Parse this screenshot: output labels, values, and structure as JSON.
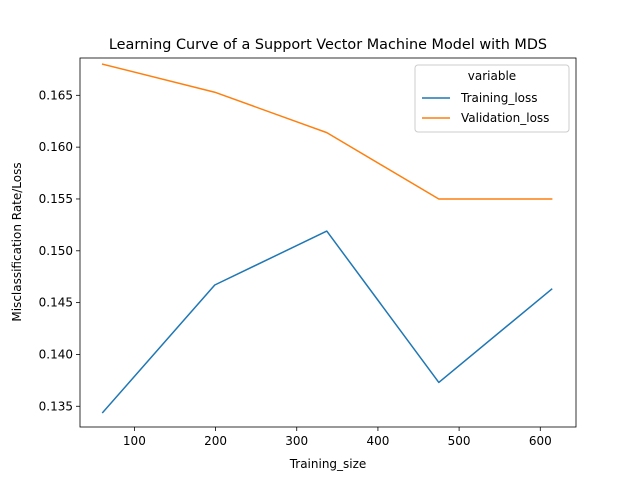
{
  "chart_data": {
    "type": "line",
    "title": "Learning Curve of a Support Vector Machine Model with MDS",
    "xlabel": "Training_size",
    "ylabel": "Misclassification Rate/Loss",
    "xlim": [
      33,
      644
    ],
    "ylim": [
      0.133,
      0.1686
    ],
    "xticks": [
      100,
      200,
      300,
      400,
      500,
      600
    ],
    "yticks": [
      0.135,
      0.14,
      0.145,
      0.15,
      0.155,
      0.16,
      0.165
    ],
    "grid": false,
    "legend": {
      "title": "variable",
      "position": "top-right"
    },
    "x": [
      61,
      199,
      337,
      475,
      614
    ],
    "series": [
      {
        "name": "Training_loss",
        "color": "#1f77b4",
        "values": [
          0.1344,
          0.1467,
          0.1519,
          0.1373,
          0.1463
        ]
      },
      {
        "name": "Validation_loss",
        "color": "#ff7f0e",
        "values": [
          0.168,
          0.1653,
          0.1614,
          0.155,
          0.155
        ]
      }
    ]
  }
}
